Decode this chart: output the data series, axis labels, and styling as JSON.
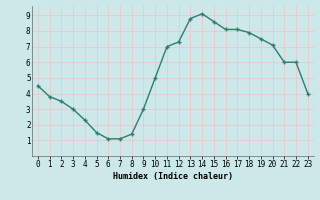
{
  "x": [
    0,
    1,
    2,
    3,
    4,
    5,
    6,
    7,
    8,
    9,
    10,
    11,
    12,
    13,
    14,
    15,
    16,
    17,
    18,
    19,
    20,
    21,
    22,
    23
  ],
  "y": [
    4.5,
    3.8,
    3.5,
    3.0,
    2.3,
    1.5,
    1.1,
    1.1,
    1.4,
    3.0,
    5.0,
    7.0,
    7.3,
    8.8,
    9.1,
    8.6,
    8.1,
    8.1,
    7.9,
    7.5,
    7.1,
    6.0,
    6.0,
    4.0
  ],
  "line_color": "#2e7d6e",
  "marker": "+",
  "marker_size": 3,
  "xlabel": "Humidex (Indice chaleur)",
  "xlim": [
    -0.5,
    23.5
  ],
  "ylim": [
    0,
    9.6
  ],
  "xticks": [
    0,
    1,
    2,
    3,
    4,
    5,
    6,
    7,
    8,
    9,
    10,
    11,
    12,
    13,
    14,
    15,
    16,
    17,
    18,
    19,
    20,
    21,
    22,
    23
  ],
  "yticks": [
    1,
    2,
    3,
    4,
    5,
    6,
    7,
    8,
    9
  ],
  "background_color": "#cce8e8",
  "grid_color": "#e8c8c8",
  "xlabel_fontsize": 6.0,
  "tick_fontsize": 5.5
}
